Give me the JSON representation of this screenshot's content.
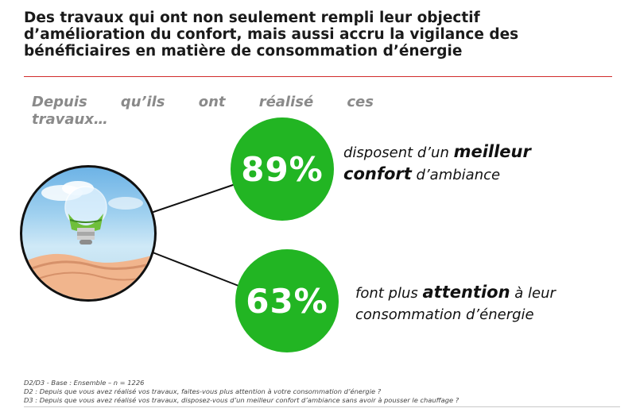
{
  "title": {
    "line1": "Des travaux qui ont non seulement rempli leur objectif",
    "line2": "d’amélioration du confort, mais aussi accru la vigilance des",
    "line3": "bénéficiaires en matière de consommation d’énergie"
  },
  "intro": {
    "words": [
      "Depuis",
      "qu’ils",
      "ont",
      "réalisé",
      "ces"
    ],
    "line2": "travaux…"
  },
  "stat1": {
    "value": "89%",
    "pre": "disposent d’un ",
    "bold1": "meilleur",
    "bold2": "confort",
    "post": " d’ambiance"
  },
  "stat2": {
    "value": "63%",
    "pre": "font plus ",
    "bold": "attention",
    "post1": " à leur",
    "post2": "consommation d’énergie"
  },
  "footer": {
    "base": "D2/D3 - Base : Ensemble – n = 1226",
    "d2": "D2 : Depuis que vous avez réalisé vos travaux, faites-vous plus attention à votre consommation d’énergie ?",
    "d3": "D3 : Depuis que vous avez réalisé vos travaux, disposez-vous d’un meilleur confort d’ambiance sans avoir à pousser le chauffage ?"
  },
  "colors": {
    "accent_green": "#22b523",
    "rule_red": "#d12b2b",
    "intro_gray": "#8a8a8a"
  },
  "illustration": "lightbulb-in-hands"
}
